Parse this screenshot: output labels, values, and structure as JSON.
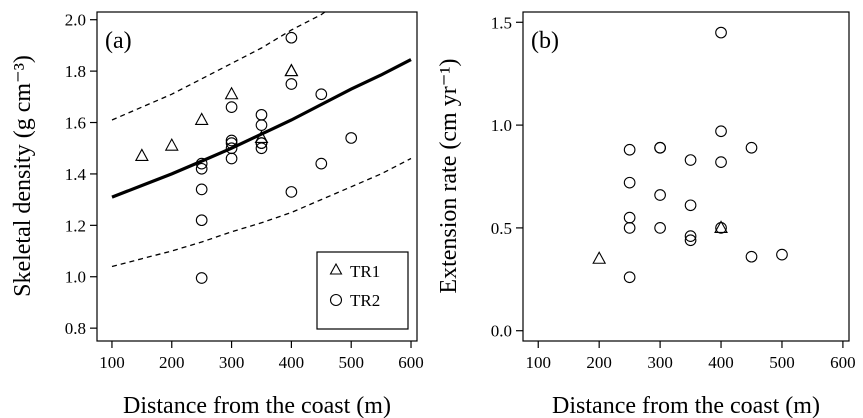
{
  "chart_data": [
    {
      "type": "scatter",
      "panel_label": "(a)",
      "xlabel": "Distance from the coast (m)",
      "ylabel": "Skeletal density (g cm⁻³)",
      "xlim": [
        75,
        610
      ],
      "ylim": [
        0.75,
        2.03
      ],
      "xticks": [
        "100",
        "200",
        "300",
        "400",
        "500",
        "600"
      ],
      "yticks": [
        "0.8",
        "1.0",
        "1.2",
        "1.4",
        "1.6",
        "1.8",
        "2.0"
      ],
      "legend": {
        "position": "bottom-right",
        "entries": [
          "TR1",
          "TR2"
        ]
      },
      "series": [
        {
          "name": "TR1",
          "marker": "triangle",
          "x": [
            150,
            200,
            250,
            300,
            350,
            400,
            400
          ],
          "y": [
            1.47,
            1.51,
            1.61,
            1.71,
            1.54,
            1.8,
            1.8
          ]
        },
        {
          "name": "TR2",
          "marker": "circle",
          "x": [
            250,
            250,
            250,
            250,
            250,
            300,
            300,
            300,
            300,
            300,
            350,
            350,
            350,
            350,
            350,
            400,
            400,
            400,
            450,
            450,
            500
          ],
          "y": [
            0.995,
            1.22,
            1.34,
            1.42,
            1.44,
            1.46,
            1.5,
            1.52,
            1.53,
            1.66,
            1.5,
            1.52,
            1.59,
            1.63,
            1.52,
            1.93,
            1.75,
            1.33,
            1.71,
            1.44,
            1.54
          ]
        }
      ],
      "fit_line": {
        "style": "solid",
        "x": [
          100,
          150,
          200,
          250,
          300,
          350,
          400,
          450,
          500,
          550,
          600
        ],
        "y": [
          1.31,
          1.355,
          1.4,
          1.45,
          1.5,
          1.555,
          1.61,
          1.67,
          1.73,
          1.785,
          1.845
        ]
      },
      "upper_band": {
        "style": "dashed",
        "x": [
          100,
          150,
          200,
          250,
          300,
          350,
          400,
          450,
          462
        ],
        "y": [
          1.61,
          1.66,
          1.71,
          1.77,
          1.83,
          1.89,
          1.96,
          2.02,
          2.04
        ]
      },
      "lower_band": {
        "style": "dashed",
        "x": [
          100,
          150,
          200,
          250,
          300,
          350,
          400,
          450,
          500,
          550,
          600
        ],
        "y": [
          1.04,
          1.07,
          1.1,
          1.135,
          1.175,
          1.21,
          1.25,
          1.3,
          1.35,
          1.4,
          1.46
        ]
      }
    },
    {
      "type": "scatter",
      "panel_label": "(b)",
      "xlabel": "Distance from the coast (m)",
      "ylabel": "Extension rate (cm yr⁻¹)",
      "xlim": [
        75,
        610
      ],
      "ylim": [
        -0.05,
        1.55
      ],
      "xticks": [
        "100",
        "200",
        "300",
        "400",
        "500",
        "600"
      ],
      "yticks": [
        "0.0",
        "0.5",
        "1.0",
        "1.5"
      ],
      "series": [
        {
          "name": "TR1",
          "marker": "triangle",
          "x": [
            200,
            400
          ],
          "y": [
            0.35,
            0.5
          ]
        },
        {
          "name": "TR2",
          "marker": "circle",
          "x": [
            250,
            250,
            250,
            250,
            250,
            300,
            300,
            300,
            300,
            350,
            350,
            350,
            350,
            400,
            400,
            400,
            400,
            450,
            450,
            500
          ],
          "y": [
            0.26,
            0.5,
            0.55,
            0.72,
            0.88,
            0.5,
            0.66,
            0.89,
            0.89,
            0.44,
            0.46,
            0.61,
            0.83,
            0.5,
            0.82,
            0.97,
            1.45,
            0.36,
            0.89,
            0.37
          ]
        }
      ]
    }
  ]
}
